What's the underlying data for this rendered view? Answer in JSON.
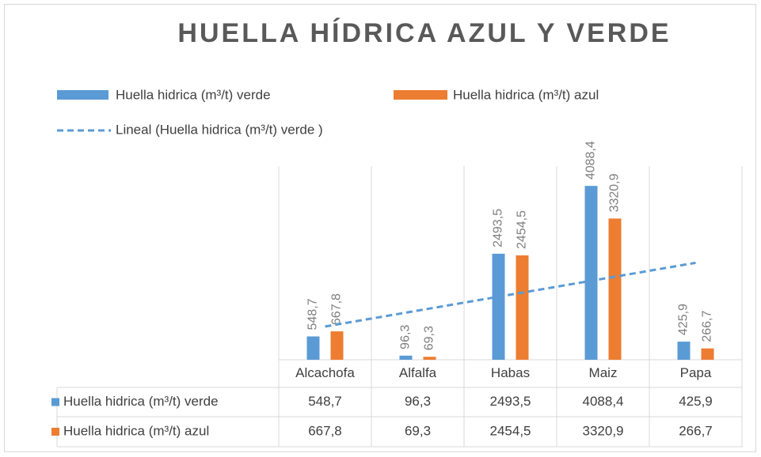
{
  "chart_data": {
    "type": "bar",
    "title": "HUELLA HÍDRICA AZUL Y VERDE",
    "categories": [
      "Alcachofa",
      "Alfalfa",
      "Habas",
      "Maiz",
      "Papa"
    ],
    "series": [
      {
        "name": "Huella hidrica (m³/t) verde",
        "color": "#5b9bd5",
        "values": [
          548.7,
          96.3,
          2493.5,
          4088.4,
          425.9
        ],
        "value_labels": [
          "548,7",
          "96,3",
          "2493,5",
          "4088,4",
          "425,9"
        ]
      },
      {
        "name": "Huella hidrica (m³/t) azul",
        "color": "#ed7d31",
        "values": [
          667.8,
          69.3,
          2454.5,
          3320.9,
          266.7
        ],
        "value_labels": [
          "667,8",
          "69,3",
          "2454,5",
          "3320,9",
          "266,7"
        ]
      }
    ],
    "trendline": {
      "name": "Lineal (Huella hidrica (m³/t) verde )",
      "series": 0,
      "color": "#5b9bd5"
    },
    "ylim": [
      0,
      4500
    ],
    "data_table": true
  }
}
